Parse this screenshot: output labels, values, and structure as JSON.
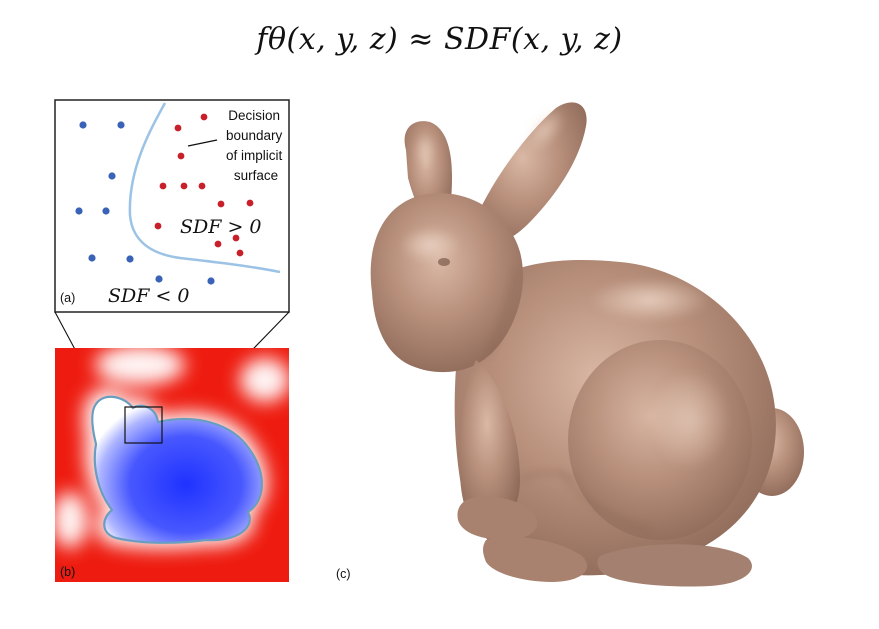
{
  "equation": "fθ(x, y, z) ≈ SDF(x, y, z)",
  "panel_a": {
    "tag": "(a)",
    "annotation_lines": [
      "Decision",
      "boundary",
      "of implicit",
      "surface"
    ],
    "positive_label": "SDF > 0",
    "negative_label": "SDF < 0",
    "colors": {
      "inside_points": "#3a63b8",
      "outside_points": "#c8202a",
      "boundary": "#9cc3e6"
    }
  },
  "panel_b": {
    "tag": "(b)",
    "colors": {
      "outside": "#ee1c10",
      "inside": "#2a3dff",
      "contour": "#6a9ec0"
    }
  },
  "panel_c": {
    "tag": "(c)",
    "subject": "bunny-mesh",
    "colors": {
      "surface": "#b08b78"
    }
  }
}
